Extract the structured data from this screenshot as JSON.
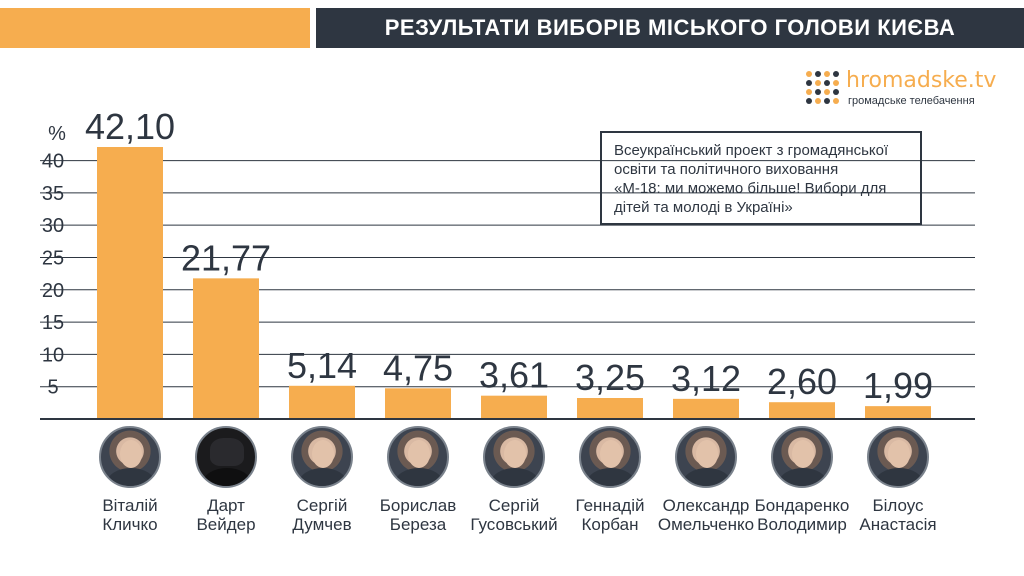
{
  "header": {
    "title": "РЕЗУЛЬТАТИ ВИБОРІВ МІСЬКОГО ГОЛОВИ КИЄВА"
  },
  "logo": {
    "name": "hromadske.tv",
    "subtitle": "громадське телебачення"
  },
  "note": {
    "lines": [
      "Всеукраїнський проект з громадянської",
      "освіти та політичного виховання",
      "«М-18: ми можемо більше! Вибори для",
      "дітей та молоді в Україні»"
    ]
  },
  "colors": {
    "bar": "#f6ad4f",
    "dark": "#2e3641",
    "axis": "#2e3641"
  },
  "chart_data": {
    "type": "bar",
    "ylabel": "%",
    "ylim": [
      0,
      42.1
    ],
    "yticks": [
      5,
      10,
      15,
      20,
      25,
      30,
      35,
      40
    ],
    "grid": true,
    "categories": [
      "Віталій Кличко",
      "Дарт Вейдер",
      "Сергій Думчев",
      "Борислав Береза",
      "Сергій Гусовський",
      "Геннадій Корбан",
      "Олександр Омельченко",
      "Бондаренко Володимир",
      "Білоус Анастасія"
    ],
    "values": [
      42.1,
      21.77,
      5.14,
      4.75,
      3.61,
      3.25,
      3.12,
      2.6,
      1.99
    ],
    "value_labels": [
      "42,10",
      "21,77",
      "5,14",
      "4,75",
      "3,61",
      "3,25",
      "3,12",
      "2,60",
      "1,99"
    ]
  },
  "candidates": [
    {
      "line1": "Віталій",
      "line2": "Кличко",
      "photo": "portrait"
    },
    {
      "line1": "Дарт",
      "line2": "Вейдер",
      "photo": "vader-helmet"
    },
    {
      "line1": "Сергій",
      "line2": "Думчев",
      "photo": "portrait"
    },
    {
      "line1": "Борислав",
      "line2": "Береза",
      "photo": "portrait"
    },
    {
      "line1": "Сергій",
      "line2": "Гусовський",
      "photo": "portrait"
    },
    {
      "line1": "Геннадій",
      "line2": "Корбан",
      "photo": "portrait"
    },
    {
      "line1": "Олександр",
      "line2": "Омельченко",
      "photo": "portrait"
    },
    {
      "line1": "Бондаренко",
      "line2": "Володимир",
      "photo": "portrait"
    },
    {
      "line1": "Білоус",
      "line2": "Анастасія",
      "photo": "portrait"
    }
  ]
}
